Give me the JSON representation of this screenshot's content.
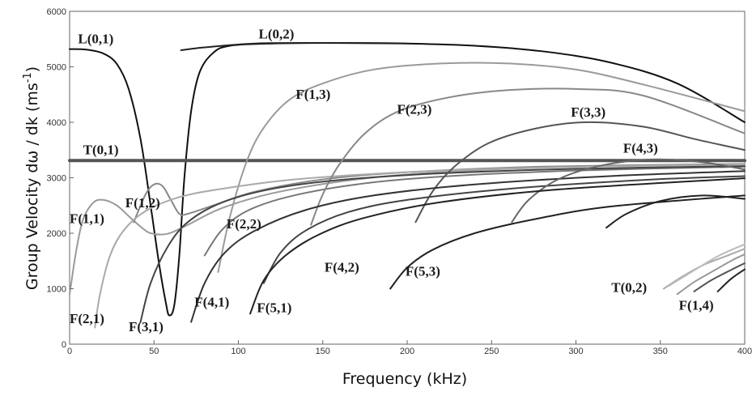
{
  "chart_data": {
    "type": "line",
    "xlabel": "Frequency (kHz)",
    "ylabel": "Group Velocity dω / dk (ms",
    "ylabel_sup": "-1",
    "ylabel_close": ")",
    "xlim": [
      0,
      400
    ],
    "ylim": [
      0,
      6000
    ],
    "x_ticks": [
      0,
      50,
      100,
      150,
      200,
      250,
      300,
      350,
      400
    ],
    "y_ticks": [
      0,
      1000,
      2000,
      3000,
      4000,
      5000,
      6000
    ],
    "grid": false,
    "series": [
      {
        "name": "L(0,1)",
        "color": "#111111",
        "points": [
          [
            0,
            5320
          ],
          [
            10,
            5310
          ],
          [
            20,
            5240
          ],
          [
            28,
            5050
          ],
          [
            35,
            4600
          ],
          [
            42,
            3700
          ],
          [
            48,
            2500
          ],
          [
            53,
            1450
          ],
          [
            57,
            750
          ],
          [
            59,
            520
          ],
          [
            62,
            700
          ],
          [
            65,
            1600
          ],
          [
            68,
            3000
          ],
          [
            72,
            4200
          ],
          [
            77,
            4900
          ],
          [
            85,
            5250
          ],
          [
            95,
            5380
          ],
          [
            120,
            5420
          ],
          [
            160,
            5430
          ],
          [
            200,
            5420
          ],
          [
            240,
            5380
          ],
          [
            280,
            5280
          ],
          [
            320,
            5080
          ],
          [
            360,
            4700
          ],
          [
            400,
            4000
          ]
        ]
      },
      {
        "name": "L(0,2)",
        "color": "#222222",
        "points": [
          [
            66,
            5300
          ],
          [
            80,
            5350
          ],
          [
            110,
            5420
          ],
          [
            150,
            5430
          ],
          [
            200,
            5420
          ]
        ]
      },
      {
        "name": "T(0,1)",
        "color": "#555555",
        "points": [
          [
            0,
            3310
          ],
          [
            400,
            3310
          ]
        ]
      },
      {
        "name": "F(1,1)",
        "color": "#9a9a9a",
        "points": [
          [
            0,
            900
          ],
          [
            4,
            1700
          ],
          [
            8,
            2250
          ],
          [
            14,
            2550
          ],
          [
            20,
            2600
          ],
          [
            28,
            2500
          ],
          [
            36,
            2280
          ],
          [
            42,
            2120
          ],
          [
            48,
            2000
          ],
          [
            58,
            1990
          ],
          [
            70,
            2150
          ],
          [
            90,
            2450
          ],
          [
            120,
            2720
          ],
          [
            160,
            2930
          ],
          [
            200,
            3060
          ],
          [
            260,
            3160
          ],
          [
            320,
            3210
          ],
          [
            400,
            3240
          ]
        ]
      },
      {
        "name": "F(1,2)",
        "color": "#888888",
        "points": [
          [
            38,
            2200
          ],
          [
            45,
            2700
          ],
          [
            50,
            2880
          ],
          [
            55,
            2850
          ],
          [
            60,
            2600
          ],
          [
            65,
            2350
          ],
          [
            70,
            2350
          ],
          [
            85,
            2500
          ],
          [
            110,
            2750
          ],
          [
            150,
            2970
          ],
          [
            200,
            3100
          ],
          [
            280,
            3200
          ],
          [
            400,
            3250
          ]
        ]
      },
      {
        "name": "F(1,3)",
        "color": "#9a9a9a",
        "points": [
          [
            88,
            1300
          ],
          [
            95,
            2300
          ],
          [
            105,
            3300
          ],
          [
            115,
            3900
          ],
          [
            130,
            4400
          ],
          [
            150,
            4700
          ],
          [
            180,
            4950
          ],
          [
            220,
            5060
          ],
          [
            260,
            5060
          ],
          [
            300,
            4950
          ],
          [
            340,
            4680
          ],
          [
            400,
            4200
          ]
        ]
      },
      {
        "name": "F(2,1)",
        "color": "#aaaaaa",
        "points": [
          [
            15,
            300
          ],
          [
            18,
            900
          ],
          [
            24,
            1600
          ],
          [
            32,
            2050
          ],
          [
            45,
            2400
          ],
          [
            65,
            2650
          ],
          [
            90,
            2800
          ],
          [
            130,
            2960
          ],
          [
            180,
            3070
          ],
          [
            250,
            3160
          ],
          [
            330,
            3210
          ],
          [
            400,
            3240
          ]
        ]
      },
      {
        "name": "F(2,2)",
        "color": "#777777",
        "points": [
          [
            80,
            1600
          ],
          [
            90,
            2050
          ],
          [
            105,
            2400
          ],
          [
            130,
            2660
          ],
          [
            170,
            2880
          ],
          [
            220,
            3020
          ],
          [
            300,
            3130
          ],
          [
            400,
            3200
          ]
        ]
      },
      {
        "name": "F(2,3)",
        "color": "#888888",
        "points": [
          [
            143,
            2150
          ],
          [
            150,
            2700
          ],
          [
            160,
            3250
          ],
          [
            175,
            3800
          ],
          [
            195,
            4200
          ],
          [
            225,
            4450
          ],
          [
            260,
            4580
          ],
          [
            300,
            4600
          ],
          [
            340,
            4480
          ],
          [
            400,
            3800
          ]
        ]
      },
      {
        "name": "F(3,1)",
        "color": "#444444",
        "points": [
          [
            42,
            400
          ],
          [
            48,
            1100
          ],
          [
            58,
            1750
          ],
          [
            70,
            2200
          ],
          [
            90,
            2550
          ],
          [
            120,
            2800
          ],
          [
            160,
            2960
          ],
          [
            220,
            3080
          ],
          [
            300,
            3160
          ],
          [
            400,
            3210
          ]
        ]
      },
      {
        "name": "F(3,3)",
        "color": "#555555",
        "points": [
          [
            205,
            2200
          ],
          [
            215,
            2750
          ],
          [
            228,
            3200
          ],
          [
            248,
            3620
          ],
          [
            275,
            3880
          ],
          [
            305,
            4000
          ],
          [
            340,
            3920
          ],
          [
            370,
            3700
          ],
          [
            400,
            3500
          ]
        ]
      },
      {
        "name": "F(4,1)",
        "color": "#333333",
        "points": [
          [
            72,
            400
          ],
          [
            80,
            1100
          ],
          [
            92,
            1650
          ],
          [
            110,
            2050
          ],
          [
            140,
            2420
          ],
          [
            180,
            2680
          ],
          [
            240,
            2880
          ],
          [
            320,
            3030
          ],
          [
            400,
            3120
          ]
        ]
      },
      {
        "name": "F(4,2)",
        "color": "#444444",
        "points": [
          [
            115,
            1100
          ],
          [
            125,
            1650
          ],
          [
            140,
            2050
          ],
          [
            165,
            2380
          ],
          [
            200,
            2600
          ],
          [
            260,
            2800
          ],
          [
            340,
            2960
          ],
          [
            400,
            3030
          ]
        ]
      },
      {
        "name": "F(4,3)",
        "color": "#666666",
        "points": [
          [
            262,
            2200
          ],
          [
            272,
            2600
          ],
          [
            290,
            2980
          ],
          [
            315,
            3220
          ],
          [
            345,
            3330
          ],
          [
            375,
            3280
          ],
          [
            400,
            3150
          ]
        ]
      },
      {
        "name": "F(5,1)",
        "color": "#222222",
        "points": [
          [
            107,
            550
          ],
          [
            115,
            1150
          ],
          [
            128,
            1600
          ],
          [
            148,
            1980
          ],
          [
            175,
            2280
          ],
          [
            220,
            2560
          ],
          [
            290,
            2790
          ],
          [
            400,
            2990
          ]
        ]
      },
      {
        "name": "F(5,3)",
        "color": "#222222",
        "points": [
          [
            190,
            1000
          ],
          [
            200,
            1380
          ],
          [
            215,
            1700
          ],
          [
            240,
            2000
          ],
          [
            275,
            2250
          ],
          [
            320,
            2480
          ],
          [
            400,
            2680
          ]
        ]
      },
      {
        "name": "",
        "color": "#222222",
        "points": [
          [
            318,
            2100
          ],
          [
            330,
            2350
          ],
          [
            350,
            2580
          ],
          [
            375,
            2680
          ],
          [
            400,
            2620
          ]
        ]
      },
      {
        "name": "T(0,2)",
        "color": "#aaaaaa",
        "points": [
          [
            352,
            1000
          ],
          [
            362,
            1200
          ],
          [
            375,
            1420
          ],
          [
            390,
            1600
          ],
          [
            400,
            1720
          ]
        ]
      },
      {
        "name": "F(1,4)",
        "color": "#999999",
        "points": [
          [
            360,
            900
          ],
          [
            370,
            1120
          ],
          [
            382,
            1330
          ],
          [
            393,
            1520
          ],
          [
            400,
            1620
          ]
        ]
      },
      {
        "name": "",
        "color": "#555555",
        "points": [
          [
            370,
            950
          ],
          [
            380,
            1150
          ],
          [
            392,
            1340
          ],
          [
            400,
            1460
          ]
        ]
      },
      {
        "name": "",
        "color": "#222222",
        "points": [
          [
            384,
            950
          ],
          [
            392,
            1180
          ],
          [
            400,
            1350
          ]
        ]
      },
      {
        "name": "",
        "color": "#bbbbbb",
        "points": [
          [
            355,
            1050
          ],
          [
            370,
            1330
          ],
          [
            385,
            1600
          ],
          [
            400,
            1800
          ]
        ]
      }
    ],
    "labels": [
      {
        "text": "L(0,1)",
        "x": 5,
        "y": 5420
      },
      {
        "text": "L(0,2)",
        "x": 112,
        "y": 5510
      },
      {
        "text": "F(1,3)",
        "x": 134,
        "y": 4420
      },
      {
        "text": "F(2,3)",
        "x": 194,
        "y": 4150
      },
      {
        "text": "F(3,3)",
        "x": 297,
        "y": 4100
      },
      {
        "text": "T(0,1)",
        "x": 8,
        "y": 3420
      },
      {
        "text": "F(4,3)",
        "x": 328,
        "y": 3450
      },
      {
        "text": "F(1,2)",
        "x": 33,
        "y": 2470
      },
      {
        "text": "F(1,1)",
        "x": 0,
        "y": 2180
      },
      {
        "text": "F(2,2)",
        "x": 93,
        "y": 2090
      },
      {
        "text": "F(4,2)",
        "x": 151,
        "y": 1310
      },
      {
        "text": "F(5,3)",
        "x": 199,
        "y": 1230
      },
      {
        "text": "T(0,2)",
        "x": 321,
        "y": 940
      },
      {
        "text": "F(4,1)",
        "x": 74,
        "y": 680
      },
      {
        "text": "F(5,1)",
        "x": 111,
        "y": 580
      },
      {
        "text": "F(1,4)",
        "x": 361,
        "y": 620
      },
      {
        "text": "F(2,1)",
        "x": 0,
        "y": 380
      },
      {
        "text": "F(3,1)",
        "x": 35,
        "y": 230
      }
    ]
  }
}
